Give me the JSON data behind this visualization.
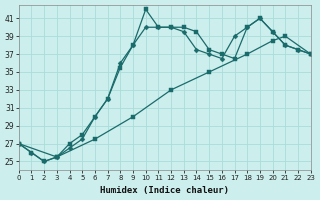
{
  "xlabel": "Humidex (Indice chaleur)",
  "background_color": "#cceeed",
  "grid_color": "#aaddda",
  "line_color": "#1a6b6b",
  "x_min": 0,
  "x_max": 23,
  "y_min": 24,
  "y_max": 42.5,
  "y_ticks": [
    25,
    27,
    29,
    31,
    33,
    35,
    37,
    39,
    41
  ],
  "line1_x": [
    0,
    1,
    2,
    3,
    4,
    5,
    6,
    7,
    8,
    9,
    10,
    11,
    12,
    13,
    14,
    15,
    16,
    17,
    18,
    19,
    20,
    21,
    22,
    23
  ],
  "line1_y": [
    27.0,
    26.0,
    25.0,
    25.5,
    27.0,
    28.0,
    30.0,
    32.0,
    35.5,
    38.0,
    42.0,
    40.0,
    40.0,
    40.0,
    39.5,
    37.5,
    37.0,
    36.5,
    40.0,
    41.0,
    39.5,
    38.0,
    37.5,
    37.0
  ],
  "line2_x": [
    0,
    1,
    2,
    3,
    4,
    5,
    6,
    7,
    8,
    9,
    10,
    11,
    12,
    13,
    14,
    15,
    16,
    17,
    18,
    19,
    20,
    21,
    22,
    23
  ],
  "line2_y": [
    27.0,
    26.0,
    25.0,
    25.5,
    26.5,
    27.5,
    30.0,
    32.0,
    36.0,
    38.0,
    40.0,
    40.0,
    40.0,
    39.5,
    37.5,
    37.0,
    36.5,
    39.0,
    40.0,
    41.0,
    39.5,
    38.0,
    37.5,
    37.0
  ],
  "line3_x": [
    0,
    3,
    6,
    9,
    12,
    15,
    18,
    20,
    21,
    23
  ],
  "line3_y": [
    27.0,
    25.5,
    27.5,
    30.0,
    33.0,
    35.0,
    37.0,
    38.5,
    39.0,
    37.0
  ]
}
